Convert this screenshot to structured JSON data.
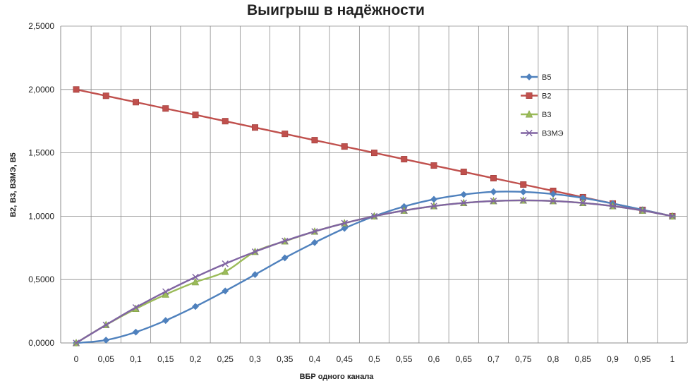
{
  "chart_data": {
    "type": "line",
    "title": "Выигрыш в надёжности",
    "xlabel": "ВБР одного канала",
    "ylabel": "В2, В3, В3МЭ, В5",
    "x": [
      0,
      0.05,
      0.1,
      0.15,
      0.2,
      0.25,
      0.3,
      0.35,
      0.4,
      0.45,
      0.5,
      0.55,
      0.6,
      0.65,
      0.7,
      0.75,
      0.8,
      0.85,
      0.9,
      0.95,
      1
    ],
    "x_tick_labels": [
      "0",
      "0,05",
      "0,1",
      "0,15",
      "0,2",
      "0,25",
      "0,3",
      "0,35",
      "0,4",
      "0,45",
      "0,5",
      "0,55",
      "0,6",
      "0,65",
      "0,7",
      "0,75",
      "0,8",
      "0,85",
      "0,9",
      "0,95",
      "1"
    ],
    "ylim": [
      0,
      2.5
    ],
    "y_ticks": [
      0,
      0.5,
      1,
      1.5,
      2,
      2.5
    ],
    "y_tick_labels": [
      "0,0000",
      "0,5000",
      "1,0000",
      "1,5000",
      "2,0000",
      "2,5000"
    ],
    "grid": true,
    "legend_position": "right",
    "series": [
      {
        "name": "В5",
        "color": "#4F81BD",
        "marker": "diamond",
        "values": [
          0,
          0.0226,
          0.0856,
          0.1771,
          0.2877,
          0.4103,
          0.5396,
          0.6713,
          0.7923,
          0.9043,
          1.0,
          1.0767,
          1.1334,
          1.1712,
          1.1926,
          1.192,
          1.175,
          1.144,
          1.1,
          1.051,
          1.0
        ]
      },
      {
        "name": "В2",
        "color": "#C0504D",
        "marker": "square",
        "values": [
          2.0,
          1.95,
          1.9,
          1.85,
          1.8,
          1.75,
          1.7,
          1.65,
          1.6,
          1.55,
          1.5,
          1.45,
          1.4,
          1.35,
          1.3,
          1.25,
          1.2,
          1.15,
          1.1,
          1.05,
          1.0
        ]
      },
      {
        "name": "В3",
        "color": "#9BBB59",
        "marker": "triangle",
        "values": [
          0,
          0.1425,
          0.27,
          0.3825,
          0.48,
          0.5625,
          0.72,
          0.8025,
          0.88,
          0.945,
          1.0,
          1.045,
          1.08,
          1.105,
          1.12,
          1.125,
          1.12,
          1.105,
          1.08,
          1.045,
          1.0
        ]
      },
      {
        "name": "В3МЭ",
        "color": "#8064A2",
        "marker": "x",
        "values": [
          0,
          0.1425,
          0.28,
          0.405,
          0.52,
          0.625,
          0.72,
          0.805,
          0.88,
          0.945,
          1.0,
          1.045,
          1.08,
          1.105,
          1.12,
          1.125,
          1.12,
          1.105,
          1.08,
          1.045,
          1.0
        ]
      }
    ]
  }
}
